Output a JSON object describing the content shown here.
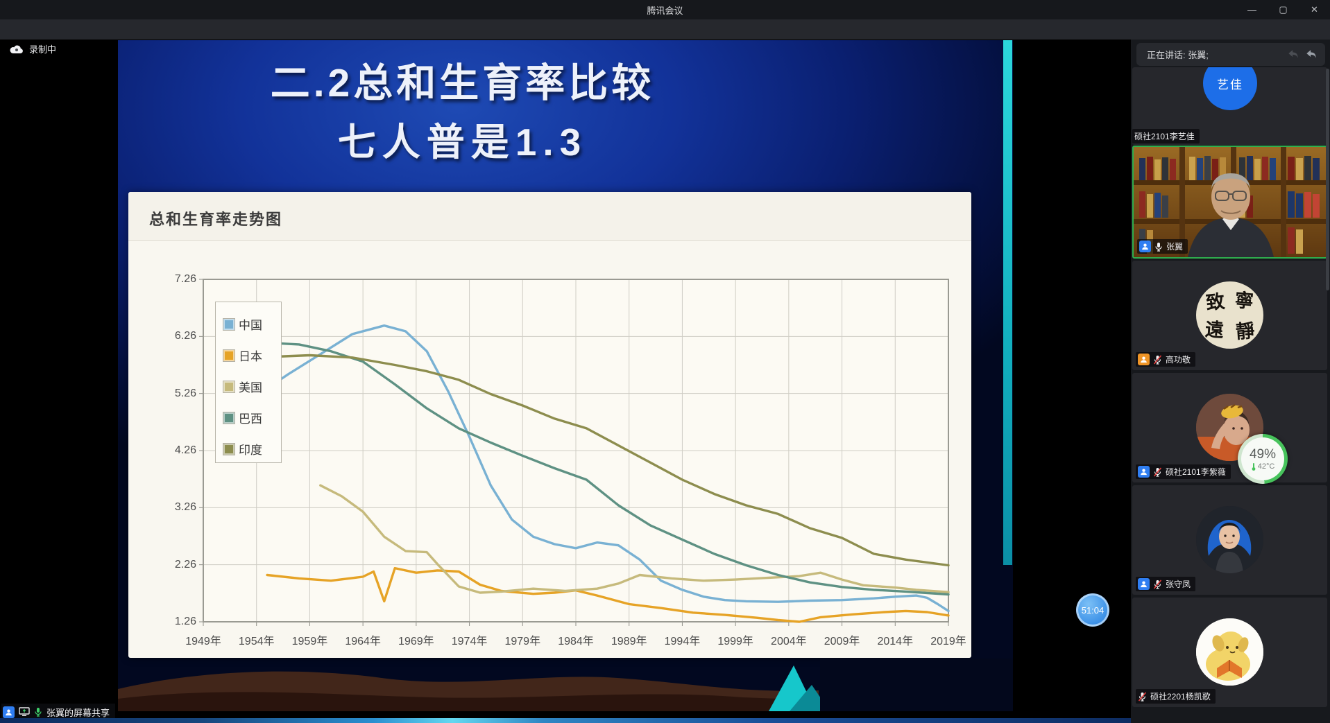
{
  "window": {
    "title": "腾讯会议"
  },
  "recording": {
    "label": "录制中"
  },
  "share_status": {
    "label": "张翼的屏幕共享"
  },
  "timer": {
    "label": "51:04"
  },
  "slide": {
    "title_line1": "二.2总和生育率比较",
    "title_line2": "七人普是1.3"
  },
  "sidebar": {
    "speaking_label": "正在讲话: 张翼;",
    "participants": [
      {
        "name": "硕社2101李艺佳",
        "avatar_text": "艺佳",
        "mic": "none",
        "type": "initials-avatar"
      },
      {
        "name": "张翼",
        "mic": "on",
        "type": "video-active-speaker"
      },
      {
        "name": "高功敬",
        "mic": "muted",
        "type": "calligraphy-avatar",
        "avatar_chars": [
          "致",
          "寧",
          "遠",
          "靜"
        ]
      },
      {
        "name": "硕社2101李紫薇",
        "mic": "muted",
        "type": "photo-avatar"
      },
      {
        "name": "张守凤",
        "mic": "muted",
        "type": "portrait-avatar"
      },
      {
        "name": "硕社2201杨凯歌",
        "mic": "muted",
        "type": "cartoon-dog-avatar"
      }
    ],
    "battery_widget": {
      "percent": "49%",
      "temp": "42°C"
    }
  },
  "chart_data": {
    "type": "line",
    "title": "总和生育率走势图",
    "xlabel": "",
    "ylabel": "",
    "x_unit_suffix": "年",
    "xlim": [
      1949,
      2019
    ],
    "ylim": [
      1.26,
      7.26
    ],
    "xticks": [
      1949,
      1954,
      1959,
      1964,
      1969,
      1974,
      1979,
      1984,
      1989,
      1994,
      1999,
      2004,
      2009,
      2014,
      2019
    ],
    "yticks": [
      1.26,
      2.26,
      3.26,
      4.26,
      5.26,
      6.26,
      7.26
    ],
    "grid": true,
    "legend_position": "top-left-inside",
    "series": [
      {
        "name": "中国",
        "color": "#79b1d3",
        "points": [
          [
            1955,
            5.35
          ],
          [
            1957,
            5.6
          ],
          [
            1960,
            5.95
          ],
          [
            1963,
            6.3
          ],
          [
            1966,
            6.45
          ],
          [
            1968,
            6.35
          ],
          [
            1970,
            6.0
          ],
          [
            1972,
            5.3
          ],
          [
            1974,
            4.5
          ],
          [
            1976,
            3.65
          ],
          [
            1978,
            3.05
          ],
          [
            1980,
            2.75
          ],
          [
            1982,
            2.62
          ],
          [
            1984,
            2.55
          ],
          [
            1986,
            2.65
          ],
          [
            1988,
            2.6
          ],
          [
            1990,
            2.35
          ],
          [
            1992,
            1.98
          ],
          [
            1994,
            1.82
          ],
          [
            1996,
            1.7
          ],
          [
            1998,
            1.64
          ],
          [
            2000,
            1.62
          ],
          [
            2003,
            1.61
          ],
          [
            2006,
            1.63
          ],
          [
            2009,
            1.64
          ],
          [
            2012,
            1.67
          ],
          [
            2014,
            1.7
          ],
          [
            2016,
            1.72
          ],
          [
            2017,
            1.68
          ],
          [
            2018,
            1.57
          ],
          [
            2019,
            1.45
          ]
        ]
      },
      {
        "name": "日本",
        "color": "#e6a326",
        "points": [
          [
            1955,
            2.08
          ],
          [
            1958,
            2.02
          ],
          [
            1961,
            1.98
          ],
          [
            1964,
            2.05
          ],
          [
            1965,
            2.14
          ],
          [
            1966,
            1.62
          ],
          [
            1967,
            2.2
          ],
          [
            1969,
            2.12
          ],
          [
            1971,
            2.16
          ],
          [
            1973,
            2.14
          ],
          [
            1975,
            1.91
          ],
          [
            1977,
            1.8
          ],
          [
            1980,
            1.75
          ],
          [
            1982,
            1.77
          ],
          [
            1984,
            1.81
          ],
          [
            1986,
            1.72
          ],
          [
            1989,
            1.57
          ],
          [
            1992,
            1.5
          ],
          [
            1995,
            1.42
          ],
          [
            1998,
            1.38
          ],
          [
            2001,
            1.33
          ],
          [
            2003,
            1.29
          ],
          [
            2005,
            1.26
          ],
          [
            2007,
            1.34
          ],
          [
            2010,
            1.39
          ],
          [
            2013,
            1.43
          ],
          [
            2015,
            1.45
          ],
          [
            2017,
            1.43
          ],
          [
            2019,
            1.37
          ]
        ]
      },
      {
        "name": "美国",
        "color": "#c6ba7c",
        "points": [
          [
            1960,
            3.65
          ],
          [
            1962,
            3.46
          ],
          [
            1964,
            3.19
          ],
          [
            1966,
            2.75
          ],
          [
            1968,
            2.5
          ],
          [
            1970,
            2.48
          ],
          [
            1971,
            2.27
          ],
          [
            1973,
            1.88
          ],
          [
            1975,
            1.77
          ],
          [
            1977,
            1.79
          ],
          [
            1980,
            1.84
          ],
          [
            1983,
            1.8
          ],
          [
            1986,
            1.84
          ],
          [
            1988,
            1.93
          ],
          [
            1990,
            2.08
          ],
          [
            1993,
            2.02
          ],
          [
            1996,
            1.98
          ],
          [
            1999,
            2.0
          ],
          [
            2002,
            2.03
          ],
          [
            2005,
            2.06
          ],
          [
            2007,
            2.12
          ],
          [
            2009,
            2.0
          ],
          [
            2011,
            1.9
          ],
          [
            2014,
            1.86
          ],
          [
            2016,
            1.82
          ],
          [
            2019,
            1.78
          ]
        ]
      },
      {
        "name": "巴西",
        "color": "#5e9183",
        "points": [
          [
            1955,
            6.15
          ],
          [
            1958,
            6.12
          ],
          [
            1961,
            6.0
          ],
          [
            1964,
            5.82
          ],
          [
            1967,
            5.42
          ],
          [
            1970,
            5.0
          ],
          [
            1973,
            4.65
          ],
          [
            1976,
            4.4
          ],
          [
            1979,
            4.17
          ],
          [
            1982,
            3.95
          ],
          [
            1985,
            3.75
          ],
          [
            1988,
            3.3
          ],
          [
            1991,
            2.95
          ],
          [
            1994,
            2.7
          ],
          [
            1997,
            2.45
          ],
          [
            2000,
            2.25
          ],
          [
            2003,
            2.08
          ],
          [
            2006,
            1.95
          ],
          [
            2009,
            1.87
          ],
          [
            2012,
            1.82
          ],
          [
            2015,
            1.79
          ],
          [
            2019,
            1.74
          ]
        ]
      },
      {
        "name": "印度",
        "color": "#8d8d4e",
        "points": [
          [
            1955,
            5.9
          ],
          [
            1959,
            5.93
          ],
          [
            1963,
            5.89
          ],
          [
            1967,
            5.76
          ],
          [
            1970,
            5.65
          ],
          [
            1973,
            5.5
          ],
          [
            1976,
            5.25
          ],
          [
            1979,
            5.05
          ],
          [
            1982,
            4.82
          ],
          [
            1985,
            4.65
          ],
          [
            1988,
            4.35
          ],
          [
            1991,
            4.05
          ],
          [
            1994,
            3.75
          ],
          [
            1997,
            3.5
          ],
          [
            2000,
            3.3
          ],
          [
            2003,
            3.15
          ],
          [
            2006,
            2.9
          ],
          [
            2009,
            2.73
          ],
          [
            2012,
            2.45
          ],
          [
            2015,
            2.35
          ],
          [
            2019,
            2.25
          ]
        ]
      }
    ]
  }
}
